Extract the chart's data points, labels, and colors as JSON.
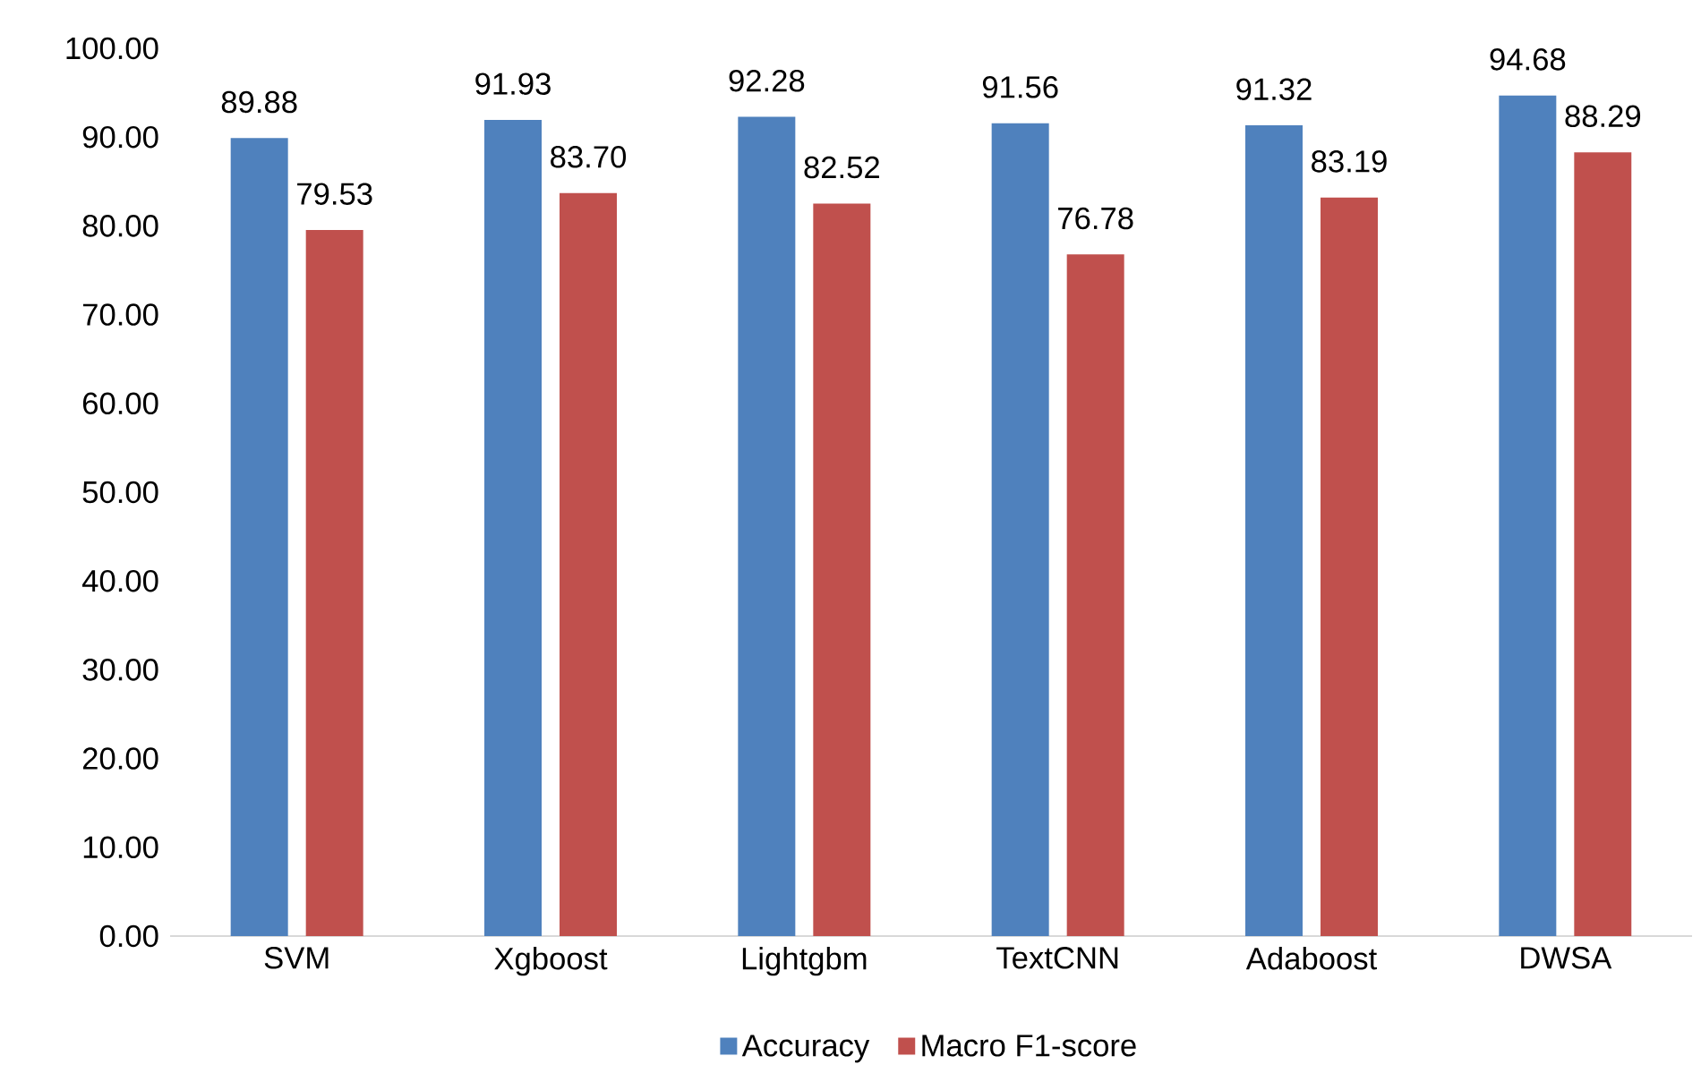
{
  "chart_data": {
    "type": "bar",
    "categories": [
      "SVM",
      "Xgboost",
      "Lightgbm",
      "TextCNN",
      "Adaboost",
      "DWSA"
    ],
    "series": [
      {
        "name": "Accuracy",
        "color": "#4f81bd",
        "values": [
          89.88,
          91.93,
          92.28,
          91.56,
          91.32,
          94.68
        ],
        "value_labels": [
          "89.88",
          "91.93",
          "92.28",
          "91.56",
          "91.32",
          "94.68"
        ]
      },
      {
        "name": "Macro F1-score",
        "color": "#c0504d",
        "values": [
          79.53,
          83.7,
          82.52,
          76.78,
          83.19,
          88.29
        ],
        "value_labels": [
          "79.53",
          "83.70",
          "82.52",
          "76.78",
          "83.19",
          "88.29"
        ]
      }
    ],
    "ylim": [
      0,
      100
    ],
    "yticks": [
      {
        "value": 0,
        "label": "0.00"
      },
      {
        "value": 10,
        "label": "10.00"
      },
      {
        "value": 20,
        "label": "20.00"
      },
      {
        "value": 30,
        "label": "30.00"
      },
      {
        "value": 40,
        "label": "40.00"
      },
      {
        "value": 50,
        "label": "50.00"
      },
      {
        "value": 60,
        "label": "60.00"
      },
      {
        "value": 70,
        "label": "70.00"
      },
      {
        "value": 80,
        "label": "80.00"
      },
      {
        "value": 90,
        "label": "90.00"
      },
      {
        "value": 100,
        "label": "100.00"
      }
    ],
    "grid": false,
    "legend": "bottom"
  }
}
